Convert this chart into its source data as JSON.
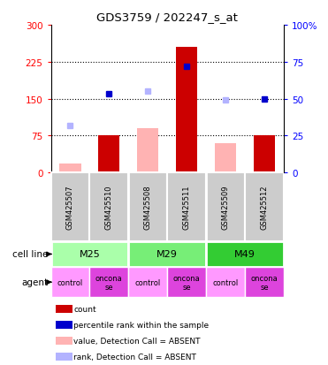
{
  "title": "GDS3759 / 202247_s_at",
  "samples": [
    "GSM425507",
    "GSM425510",
    "GSM425508",
    "GSM425511",
    "GSM425509",
    "GSM425512"
  ],
  "cell_lines": [
    [
      "M25",
      0,
      2
    ],
    [
      "M29",
      2,
      4
    ],
    [
      "M49",
      4,
      6
    ]
  ],
  "agents": [
    "control",
    "onconase",
    "control",
    "onconase",
    "control",
    "onconase"
  ],
  "count_values": [
    null,
    75,
    null,
    255,
    null,
    75
  ],
  "count_absent": [
    18,
    null,
    90,
    null,
    60,
    null
  ],
  "rank_values": [
    null,
    160,
    null,
    215,
    null,
    150
  ],
  "rank_absent": [
    95,
    null,
    165,
    null,
    148,
    null
  ],
  "ylim_left": [
    0,
    300
  ],
  "ylim_right": [
    0,
    100
  ],
  "yticks_left": [
    0,
    75,
    150,
    225,
    300
  ],
  "yticks_right": [
    0,
    25,
    50,
    75,
    100
  ],
  "ytick_labels_left": [
    "0",
    "75",
    "150",
    "225",
    "300"
  ],
  "ytick_labels_right": [
    "0",
    "25",
    "50",
    "75",
    "100%"
  ],
  "hlines": [
    75,
    150,
    225
  ],
  "count_color": "#cc0000",
  "count_absent_color": "#ffb3b3",
  "rank_color": "#0000cc",
  "rank_absent_color": "#b3b3ff",
  "cell_line_colors": [
    "#aaffaa",
    "#77ee77",
    "#33cc33"
  ],
  "gsm_bg": "#cccccc",
  "legend_items": [
    {
      "label": "count",
      "color": "#cc0000"
    },
    {
      "label": "percentile rank within the sample",
      "color": "#0000cc"
    },
    {
      "label": "value, Detection Call = ABSENT",
      "color": "#ffb3b3"
    },
    {
      "label": "rank, Detection Call = ABSENT",
      "color": "#b3b3ff"
    }
  ]
}
